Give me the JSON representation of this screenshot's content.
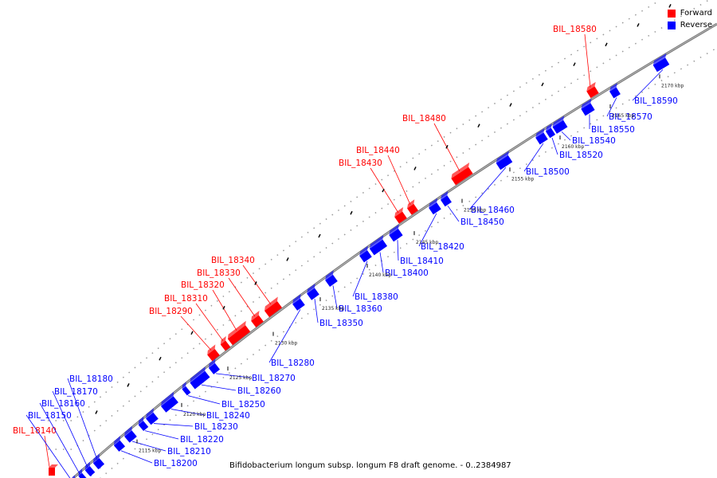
{
  "legend": {
    "forward": {
      "label": "Forward",
      "color": "#ff0000"
    },
    "reverse": {
      "label": "Reverse",
      "color": "#0000ff"
    }
  },
  "caption": "Bifidobacterium longum subsp. longum F8 draft genome. - 0..2384987",
  "backbone_color": "#888888",
  "forward_genes": [
    "BIL_18580",
    "BIL_18480",
    "BIL_18440",
    "BIL_18430",
    "BIL_18340",
    "BIL_18330",
    "BIL_18320",
    "BIL_18310",
    "BIL_18290",
    "BIL_18140"
  ],
  "reverse_genes": [
    "BIL_18590",
    "BIL_18570",
    "BIL_18550",
    "BIL_18540",
    "BIL_18520",
    "BIL_18500",
    "BIL_18460",
    "BIL_18450",
    "BIL_18420",
    "BIL_18410",
    "BIL_18400",
    "BIL_18380",
    "BIL_18360",
    "BIL_18350",
    "BIL_18280",
    "BIL_18270",
    "BIL_18260",
    "BIL_18250",
    "BIL_18240",
    "BIL_18230",
    "BIL_18220",
    "BIL_18210",
    "BIL_18200",
    "BIL_18180",
    "BIL_18170",
    "BIL_18160",
    "BIL_18150"
  ],
  "ticks": [
    "2170 kbp",
    "2165 kbp",
    "2160 kbp",
    "2155 kbp",
    "2150 kbp",
    "2145 kbp",
    "2140 kbp",
    "2135 kbp",
    "2130 kbp",
    "2125 kbp",
    "2120 kbp",
    "2115 kbp"
  ]
}
